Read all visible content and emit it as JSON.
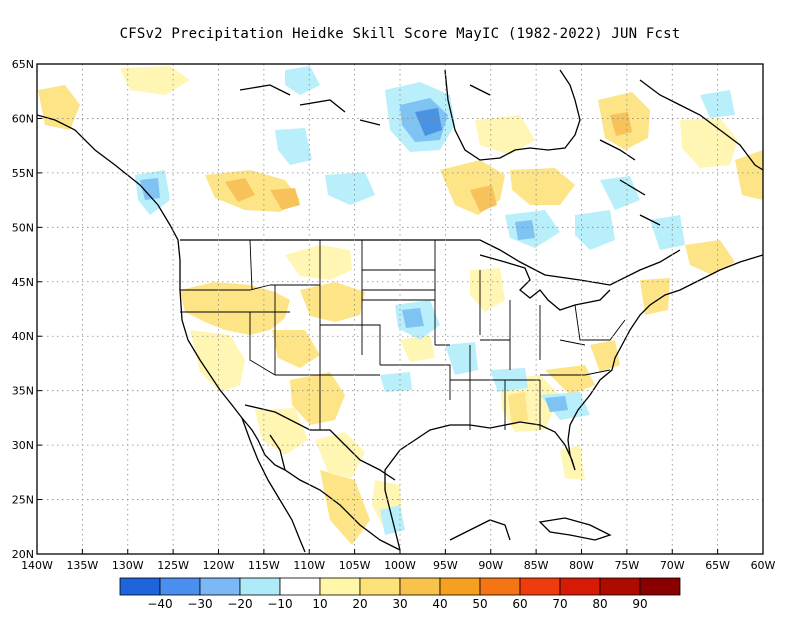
{
  "title": "CFSv2  Precipitation Heidke Skill Score MayIC (1982-2022) JUN Fcst",
  "map": {
    "lon_range": [
      -140,
      -60
    ],
    "lat_range": [
      20,
      65
    ],
    "lat_labels": [
      "65N",
      "60N",
      "55N",
      "50N",
      "45N",
      "40N",
      "35N",
      "30N",
      "25N",
      "20N"
    ],
    "lat_values": [
      65,
      60,
      55,
      50,
      45,
      40,
      35,
      30,
      25,
      20
    ],
    "lon_labels": [
      "140W",
      "135W",
      "130W",
      "125W",
      "120W",
      "115W",
      "110W",
      "105W",
      "100W",
      "95W",
      "90W",
      "85W",
      "80W",
      "75W",
      "70W",
      "65W",
      "60W"
    ],
    "lon_values": [
      -140,
      -135,
      -130,
      -125,
      -120,
      -115,
      -110,
      -105,
      -100,
      -95,
      -90,
      -85,
      -80,
      -75,
      -70,
      -65,
      -60
    ],
    "gridlines": true
  },
  "colorbar": {
    "labels": [
      "-40",
      "-30",
      "-20",
      "-10",
      "10",
      "20",
      "30",
      "40",
      "50",
      "60",
      "70",
      "80",
      "90"
    ],
    "colors": [
      "#1e64dc",
      "#4a8ef0",
      "#7db8f6",
      "#aeeaf8",
      "#ffffff",
      "#fff6a8",
      "#fde27a",
      "#f9c24a",
      "#f5a01e",
      "#f57414",
      "#ef3c0c",
      "#d51a06",
      "#ad0a00",
      "#8a0000"
    ]
  },
  "anomaly_colors": {
    "light_blue": "#b9eefb",
    "mid_blue": "#7fc3f2",
    "blue": "#4a92e4",
    "light_yellow": "#fff6b4",
    "yellow": "#fde487",
    "orange": "#f8c25a"
  }
}
